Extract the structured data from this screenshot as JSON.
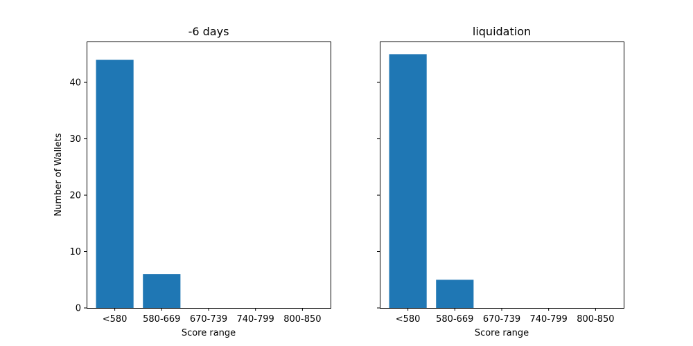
{
  "chart_data": [
    {
      "type": "bar",
      "title": "-6 days",
      "categories": [
        "<580",
        "580-669",
        "670-739",
        "740-799",
        "800-850"
      ],
      "values": [
        44,
        6,
        0,
        0,
        0
      ],
      "xlabel": "Score range",
      "ylabel": "Number of Wallets",
      "ylim": [
        0,
        47.25
      ],
      "yticks": [
        0,
        10,
        20,
        30,
        40
      ],
      "show_ytick_labels": true,
      "grid": false,
      "color": "#1f77b4"
    },
    {
      "type": "bar",
      "title": "liquidation",
      "categories": [
        "<580",
        "580-669",
        "670-739",
        "740-799",
        "800-850"
      ],
      "values": [
        45,
        5,
        0,
        0,
        0
      ],
      "xlabel": "Score range",
      "ylabel": "",
      "ylim": [
        0,
        47.25
      ],
      "yticks": [
        0,
        10,
        20,
        30,
        40
      ],
      "show_ytick_labels": false,
      "grid": false,
      "color": "#1f77b4"
    }
  ]
}
